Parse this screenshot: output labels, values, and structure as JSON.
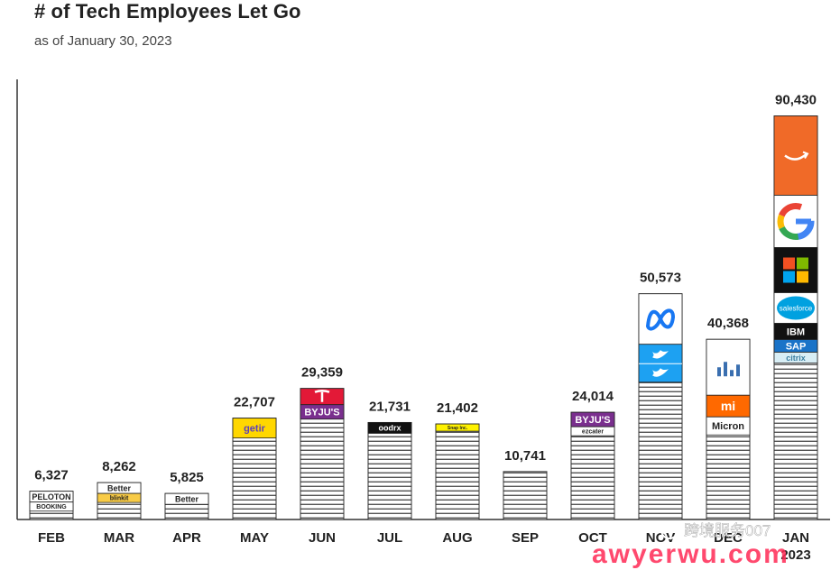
{
  "title": "# of Tech Employees Let Go",
  "subtitle": "as of January 30, 2023",
  "chart_data": {
    "type": "bar",
    "categories": [
      "FEB",
      "MAR",
      "APR",
      "MAY",
      "JUN",
      "JUL",
      "AUG",
      "SEP",
      "OCT",
      "NOV",
      "DEC",
      "JAN"
    ],
    "year_label": "2023",
    "values": [
      6327,
      8262,
      5825,
      22707,
      29359,
      21731,
      21402,
      10741,
      24014,
      50573,
      40368,
      90430
    ],
    "value_labels": [
      "6,327",
      "8,262",
      "5,825",
      "22,707",
      "29,359",
      "21,731",
      "21,402",
      "10,741",
      "24,014",
      "50,573",
      "40,368",
      "90,430"
    ],
    "ylim": [
      0,
      97000
    ],
    "grid": false,
    "colors": {
      "bar_stripe": "#555555",
      "bar_border": "#333333",
      "amazon": "#f06a28",
      "meta": "#1877f2",
      "twitter": "#1da1f2",
      "microsoft_red": "#f25022",
      "microsoft_green": "#7fba00",
      "microsoft_blue": "#00a4ef",
      "microsoft_yellow": "#ffb900",
      "salesforce": "#00a1e0",
      "xiaomi": "#ff6900",
      "tesla": "#e31937"
    },
    "logos": {
      "FEB": [
        {
          "icon": "peloton-logo",
          "text": "PELOTON"
        },
        {
          "icon": "booking-logo",
          "text": "BOOKING"
        }
      ],
      "MAR": [
        {
          "icon": "better-logo",
          "text": "Better"
        },
        {
          "icon": "blinkit-logo",
          "text": "blinkit"
        }
      ],
      "APR": [
        {
          "icon": "better-logo",
          "text": "Better"
        }
      ],
      "MAY": [
        {
          "icon": "getir-logo",
          "text": "getir"
        }
      ],
      "JUN": [
        {
          "icon": "tesla-logo",
          "text": ""
        },
        {
          "icon": "byjus-logo",
          "text": "BYJU'S"
        }
      ],
      "JUL": [
        {
          "icon": "goodrx-logo",
          "text": "oodrx"
        }
      ],
      "AUG": [
        {
          "icon": "snap-logo",
          "text": "Snap Inc."
        }
      ],
      "OCT": [
        {
          "icon": "byjus-logo",
          "text": "BYJU'S"
        },
        {
          "icon": "ezcater-logo",
          "text": "ezcater"
        }
      ],
      "NOV": [
        {
          "icon": "meta-logo",
          "text": ""
        },
        {
          "icon": "twitter-logo",
          "text": ""
        }
      ],
      "DEC": [
        {
          "icon": "analytics-logo",
          "text": ""
        },
        {
          "icon": "xiaomi-logo",
          "text": "mi"
        },
        {
          "icon": "micron-logo",
          "text": "Micron"
        }
      ],
      "JAN": [
        {
          "icon": "amazon-logo",
          "text": ""
        },
        {
          "icon": "google-logo",
          "text": "G"
        },
        {
          "icon": "microsoft-logo",
          "text": ""
        },
        {
          "icon": "salesforce-logo",
          "text": "salesforce"
        },
        {
          "icon": "ibm-logo",
          "text": "IBM"
        },
        {
          "icon": "sap-logo",
          "text": "SAP"
        },
        {
          "icon": "citrix-logo",
          "text": "citrix"
        }
      ]
    }
  },
  "watermark": {
    "account": "跨境服务007",
    "site": "awyerwu.com"
  }
}
